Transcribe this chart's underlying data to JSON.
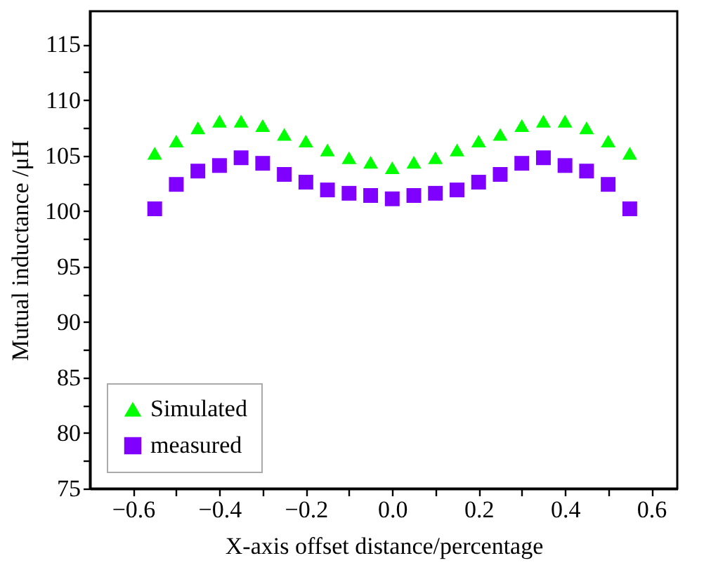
{
  "chart_data": {
    "type": "scatter",
    "xlabel": "X-axis offset distance/percentage",
    "ylabel": "Mutual inductance /μH",
    "x": [
      -0.55,
      -0.5,
      -0.45,
      -0.4,
      -0.35,
      -0.3,
      -0.25,
      -0.2,
      -0.15,
      -0.1,
      -0.05,
      0.0,
      0.05,
      0.1,
      0.15,
      0.2,
      0.25,
      0.3,
      0.35,
      0.4,
      0.45,
      0.5,
      0.55
    ],
    "series": [
      {
        "name": "Simulated",
        "color": "#00ff00",
        "marker": "triangle",
        "values": [
          105.2,
          106.3,
          107.5,
          108.1,
          108.1,
          107.7,
          106.9,
          106.3,
          105.5,
          104.8,
          104.4,
          103.9,
          104.4,
          104.8,
          105.5,
          106.3,
          106.9,
          107.7,
          108.1,
          108.1,
          107.5,
          106.3,
          105.2
        ]
      },
      {
        "name": "measured",
        "color": "#8000ff",
        "marker": "square",
        "values": [
          100.2,
          102.4,
          103.6,
          104.1,
          104.8,
          104.3,
          103.3,
          102.6,
          101.9,
          101.6,
          101.4,
          101.1,
          101.4,
          101.6,
          101.9,
          102.6,
          103.3,
          104.3,
          104.8,
          104.1,
          103.6,
          102.4,
          100.2
        ]
      }
    ],
    "xlim": [
      -0.7,
      0.66
    ],
    "ylim": [
      75,
      118
    ],
    "xticks": [
      -0.6,
      {
        "value": -0.5,
        "label": null
      },
      -0.4,
      {
        "value": -0.3,
        "label": null
      },
      -0.2,
      {
        "value": -0.1,
        "label": null
      },
      {
        "value": 0.0,
        "label": "0.0"
      },
      {
        "value": 0.1,
        "label": null
      },
      0.2,
      {
        "value": 0.3,
        "label": null
      },
      0.4,
      {
        "value": 0.5,
        "label": null
      },
      0.6
    ],
    "yticks": [
      75,
      {
        "value": 77.5,
        "label": null
      },
      80,
      {
        "value": 82.5,
        "label": null
      },
      85,
      {
        "value": 87.5,
        "label": null
      },
      90,
      {
        "value": 92.5,
        "label": null
      },
      95,
      {
        "value": 97.5,
        "label": null
      },
      100,
      {
        "value": 102.5,
        "label": null
      },
      105,
      {
        "value": 107.5,
        "label": null
      },
      110,
      {
        "value": 112.5,
        "label": null
      },
      115
    ],
    "grid": false,
    "legend": "bottom left"
  }
}
